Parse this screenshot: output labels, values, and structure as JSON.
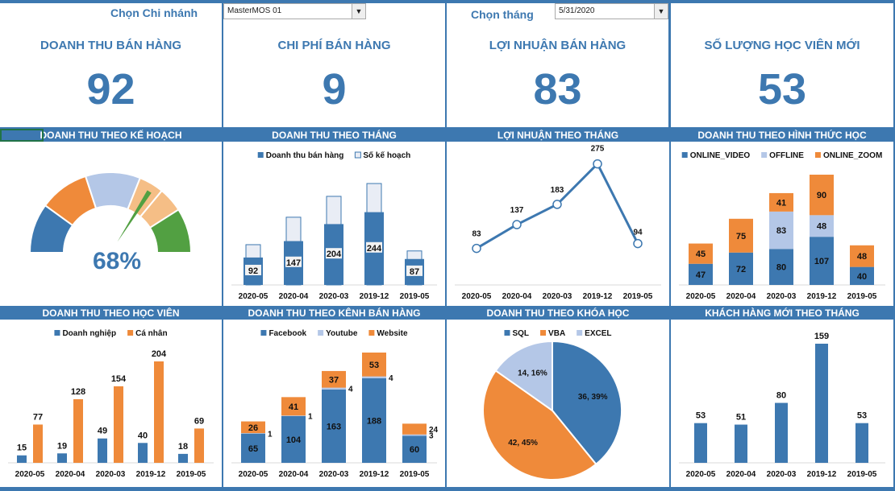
{
  "filters": {
    "branch_label": "Chọn Chi nhánh",
    "branch_value": "MasterMOS 01",
    "month_label": "Chọn tháng",
    "month_value": "5/31/2020"
  },
  "kpis": [
    {
      "title": "DOANH THU BÁN HÀNG",
      "value": "92"
    },
    {
      "title": "CHI PHÍ BÁN HÀNG",
      "value": "9"
    },
    {
      "title": "LỢI NHUẬN BÁN HÀNG",
      "value": "83"
    },
    {
      "title": "SỐ LƯỢNG HỌC VIÊN MỚI",
      "value": "53"
    }
  ],
  "colors": {
    "blue": "#3d78b0",
    "orange": "#ef8a3a",
    "light_blue": "#b4c7e7",
    "light_orange": "#f5be86",
    "green": "#52a042"
  },
  "chart_data": [
    {
      "id": "gauge",
      "type": "gauge",
      "title": "DOANH THU THEO KẾ HOẠCH",
      "value": 68,
      "value_label": "68%",
      "bands": [
        "#3d78b0",
        "#ef8a3a",
        "#b4c7e7",
        "#f5be86",
        "#f5be86",
        "#52a042"
      ]
    },
    {
      "id": "monthly",
      "type": "bar",
      "mode": "overlay",
      "title": "DOANH THU THEO THÁNG",
      "categories": [
        "2020-05",
        "2020-04",
        "2020-03",
        "2019-12",
        "2019-05"
      ],
      "series": [
        {
          "name": "Doanh thu bán hàng",
          "values": [
            92,
            147,
            204,
            244,
            87
          ],
          "color": "#3d78b0",
          "labels": true
        },
        {
          "name": "Số kế hoạch",
          "values": [
            135,
            227,
            297,
            340,
            114
          ],
          "color": "#e9edf5",
          "labels": false
        }
      ]
    },
    {
      "id": "profit",
      "type": "line",
      "title": "LỢI NHUẬN THEO THÁNG",
      "categories": [
        "2020-05",
        "2020-04",
        "2020-03",
        "2019-12",
        "2019-05"
      ],
      "values": [
        83,
        137,
        183,
        275,
        94
      ]
    },
    {
      "id": "format",
      "type": "bar",
      "mode": "stack",
      "title": "DOANH THU THEO HÌNH THỨC HỌC",
      "categories": [
        "2020-05",
        "2020-04",
        "2020-03",
        "2019-12",
        "2019-05"
      ],
      "series": [
        {
          "name": "ONLINE_VIDEO",
          "values": [
            47,
            72,
            80,
            107,
            40
          ],
          "color": "#3d78b0"
        },
        {
          "name": "OFFLINE",
          "values": [
            0,
            0,
            83,
            48,
            0
          ],
          "color": "#b4c7e7"
        },
        {
          "name": "ONLINE_ZOOM",
          "values": [
            45,
            75,
            41,
            90,
            48
          ],
          "color": "#ef8a3a"
        }
      ]
    },
    {
      "id": "student",
      "type": "bar",
      "mode": "group",
      "title": "DOANH THU THEO HỌC VIÊN",
      "categories": [
        "2020-05",
        "2020-04",
        "2020-03",
        "2019-12",
        "2019-05"
      ],
      "series": [
        {
          "name": "Doanh nghiệp",
          "values": [
            15,
            19,
            49,
            40,
            18
          ],
          "color": "#3d78b0"
        },
        {
          "name": "Cá nhân",
          "values": [
            77,
            128,
            154,
            204,
            69
          ],
          "color": "#ef8a3a"
        }
      ]
    },
    {
      "id": "channel",
      "type": "bar",
      "mode": "stack",
      "title": "DOANH THU THEO KÊNH BÁN HÀNG",
      "categories": [
        "2020-05",
        "2020-04",
        "2020-03",
        "2019-12",
        "2019-05"
      ],
      "series": [
        {
          "name": "Facebook",
          "values": [
            65,
            104,
            163,
            188,
            60
          ],
          "color": "#3d78b0"
        },
        {
          "name": "Youtube",
          "values": [
            1,
            1,
            4,
            4,
            3
          ],
          "color": "#b4c7e7"
        },
        {
          "name": "Website",
          "values": [
            26,
            41,
            37,
            53,
            24
          ],
          "color": "#ef8a3a"
        }
      ]
    },
    {
      "id": "course",
      "type": "pie",
      "title": "DOANH THU THEO KHÓA HỌC",
      "slices": [
        {
          "name": "SQL",
          "value": 36,
          "label": "36, 39%",
          "color": "#3d78b0"
        },
        {
          "name": "VBA",
          "value": 42,
          "label": "42, 45%",
          "color": "#ef8a3a"
        },
        {
          "name": "EXCEL",
          "value": 14,
          "label": "14, 16%",
          "color": "#b4c7e7"
        }
      ]
    },
    {
      "id": "newcust",
      "type": "bar",
      "mode": "group",
      "title": "KHÁCH HÀNG MỚI THEO THÁNG",
      "categories": [
        "2020-05",
        "2020-04",
        "2020-03",
        "2019-12",
        "2019-05"
      ],
      "series": [
        {
          "values": [
            53,
            51,
            80,
            159,
            53
          ],
          "color": "#3d78b0"
        }
      ]
    }
  ]
}
